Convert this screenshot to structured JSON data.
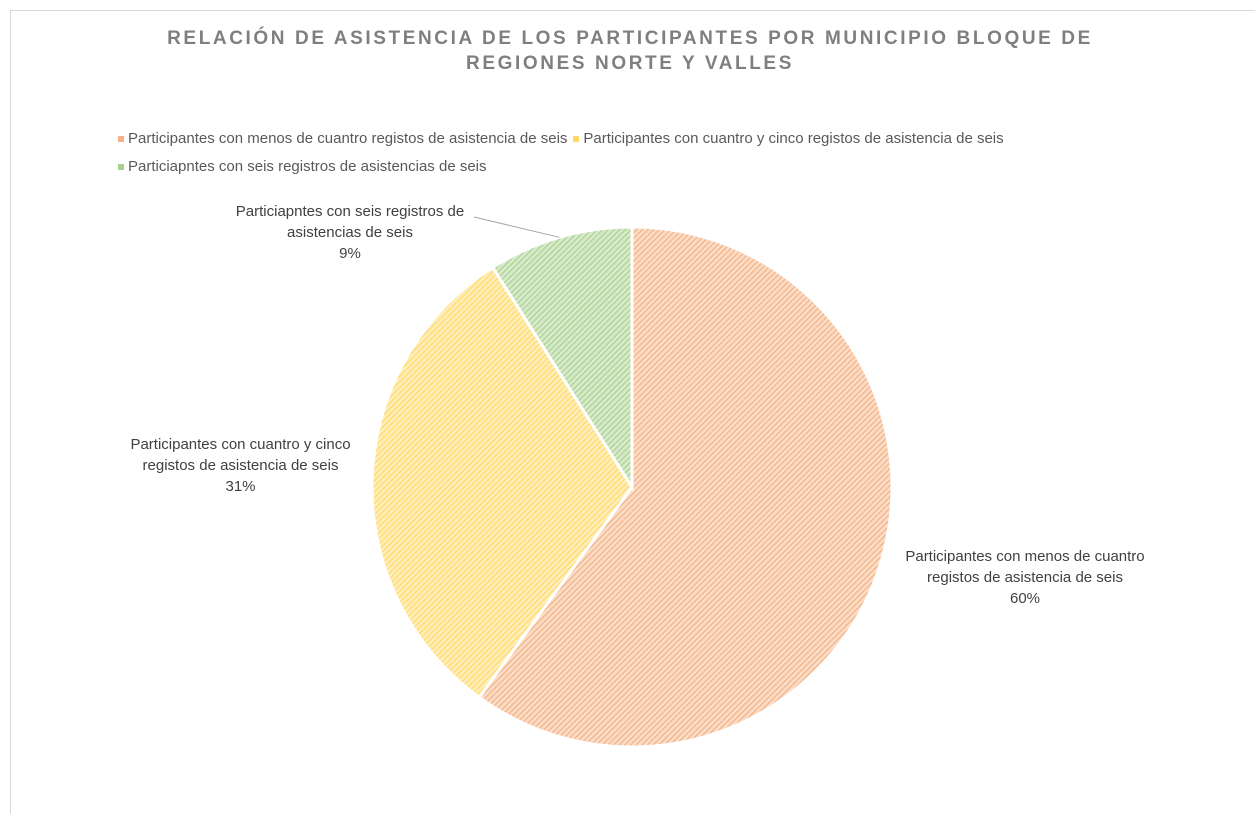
{
  "chart_data": {
    "type": "pie",
    "title": "RELACIÓN DE ASISTENCIA DE LOS PARTICIPANTES POR MUNICIPIO BLOQUE DE REGIONES NORTE Y VALLES",
    "categories": [
      "Participantes con menos de cuantro registos de asistencia de seis",
      "Participantes con cuantro y cinco registos de asistencia de seis",
      "Particiapntes con seis registros de asistencias de seis"
    ],
    "values": [
      60,
      31,
      9
    ],
    "value_labels": [
      "60%",
      "31%",
      "9%"
    ],
    "colors": [
      "#f4b183",
      "#ffd966",
      "#a9d18e"
    ],
    "legend": "top"
  }
}
